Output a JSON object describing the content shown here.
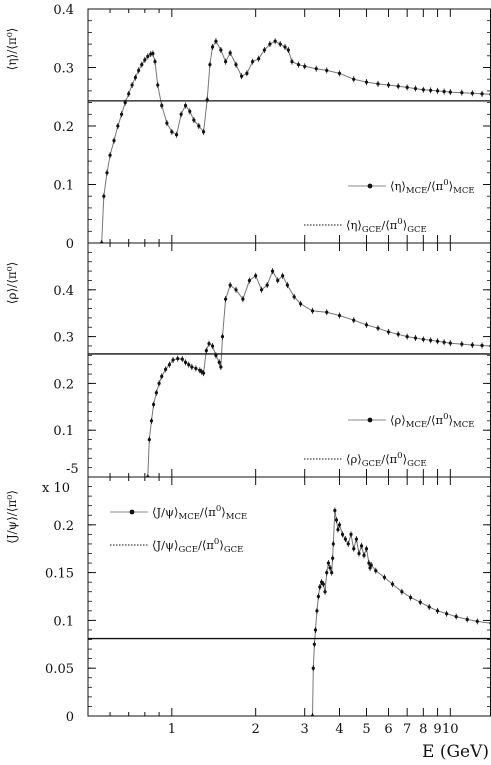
{
  "chart_data": [
    {
      "type": "line",
      "ylabel": "⟨η⟩/⟨π⁰⟩",
      "ylim": [
        0,
        0.4
      ],
      "yticks": [
        0,
        0.1,
        0.2,
        0.3,
        0.4
      ],
      "ytick_labels": [
        "0",
        "0.1",
        "0.2",
        "0.3",
        "0.4"
      ],
      "legend_position": "right",
      "series": [
        {
          "name": "⟨η⟩MCE/⟨π0⟩MCE",
          "legend": {
            "pre": "⟨η⟩",
            "sub1": "MCE",
            "mid": "/⟨π",
            "sup": "0",
            "post": "⟩",
            "sub2": "MCE"
          },
          "style": "points-line",
          "x": [
            0.56,
            0.57,
            0.585,
            0.6,
            0.62,
            0.64,
            0.66,
            0.68,
            0.7,
            0.72,
            0.74,
            0.76,
            0.78,
            0.8,
            0.82,
            0.84,
            0.855,
            0.87,
            0.89,
            0.92,
            0.96,
            1.0,
            1.04,
            1.08,
            1.12,
            1.16,
            1.2,
            1.25,
            1.3,
            1.34,
            1.37,
            1.4,
            1.44,
            1.5,
            1.56,
            1.62,
            1.7,
            1.78,
            1.86,
            1.95,
            2.05,
            2.15,
            2.25,
            2.35,
            2.45,
            2.55,
            2.62,
            2.7,
            2.85,
            3.0,
            3.3,
            3.6,
            4.0,
            4.5,
            5.0,
            5.5,
            6.0,
            6.5,
            7.0,
            7.5,
            8.0,
            8.5,
            9.0,
            9.5,
            10.0,
            11.0,
            12.0,
            13.0,
            14.0
          ],
          "y": [
            0.0,
            0.08,
            0.12,
            0.15,
            0.175,
            0.2,
            0.22,
            0.24,
            0.255,
            0.27,
            0.283,
            0.295,
            0.305,
            0.313,
            0.319,
            0.323,
            0.324,
            0.31,
            0.27,
            0.235,
            0.205,
            0.19,
            0.185,
            0.22,
            0.235,
            0.225,
            0.21,
            0.2,
            0.19,
            0.245,
            0.305,
            0.335,
            0.345,
            0.33,
            0.31,
            0.325,
            0.305,
            0.285,
            0.29,
            0.31,
            0.315,
            0.33,
            0.34,
            0.345,
            0.34,
            0.335,
            0.33,
            0.31,
            0.305,
            0.302,
            0.298,
            0.295,
            0.29,
            0.28,
            0.275,
            0.272,
            0.27,
            0.268,
            0.266,
            0.264,
            0.262,
            0.261,
            0.26,
            0.259,
            0.258,
            0.257,
            0.256,
            0.255,
            0.254
          ]
        },
        {
          "name": "⟨η⟩GCE/⟨π0⟩GCE",
          "legend": {
            "pre": "⟨η⟩",
            "sub1": "GCE",
            "mid": "/⟨π",
            "sup": "0",
            "post": "⟩",
            "sub2": "GCE"
          },
          "style": "constant-line",
          "x": [
            0.5,
            14.0
          ],
          "y": [
            0.243,
            0.243
          ]
        }
      ]
    },
    {
      "type": "line",
      "ylabel": "⟨ρ⟩/⟨π⁰⟩",
      "ylim": [
        0,
        0.5
      ],
      "yticks": [
        0.1,
        0.2,
        0.3,
        0.4
      ],
      "ytick_labels": [
        "0.1",
        "0.2",
        "0.3",
        "0.4"
      ],
      "corner_label": "-5",
      "legend_position": "right",
      "series": [
        {
          "name": "⟨ρ⟩MCE/⟨π0⟩MCE",
          "legend": {
            "pre": "⟨ρ⟩",
            "sub1": "MCE",
            "mid": "/⟨π",
            "sup": "0",
            "post": "⟩",
            "sub2": "MCE"
          },
          "style": "points-line",
          "x": [
            0.82,
            0.83,
            0.845,
            0.86,
            0.88,
            0.9,
            0.92,
            0.95,
            0.98,
            1.01,
            1.05,
            1.09,
            1.12,
            1.15,
            1.18,
            1.22,
            1.26,
            1.28,
            1.3,
            1.33,
            1.36,
            1.4,
            1.44,
            1.48,
            1.5,
            1.52,
            1.56,
            1.62,
            1.7,
            1.8,
            1.9,
            2.0,
            2.1,
            2.2,
            2.3,
            2.4,
            2.5,
            2.6,
            2.75,
            2.9,
            3.2,
            3.6,
            4.0,
            4.5,
            5.0,
            5.5,
            6.0,
            6.5,
            7.0,
            7.5,
            8.0,
            8.5,
            9.0,
            9.5,
            10.0,
            11.0,
            12.0,
            13.0,
            14.0
          ],
          "y": [
            0.0,
            0.08,
            0.12,
            0.155,
            0.18,
            0.2,
            0.215,
            0.23,
            0.24,
            0.25,
            0.253,
            0.252,
            0.245,
            0.24,
            0.235,
            0.232,
            0.228,
            0.225,
            0.222,
            0.27,
            0.285,
            0.28,
            0.26,
            0.245,
            0.235,
            0.3,
            0.38,
            0.41,
            0.4,
            0.38,
            0.42,
            0.43,
            0.4,
            0.41,
            0.44,
            0.42,
            0.43,
            0.41,
            0.385,
            0.37,
            0.355,
            0.352,
            0.345,
            0.335,
            0.325,
            0.318,
            0.31,
            0.305,
            0.3,
            0.297,
            0.294,
            0.292,
            0.29,
            0.288,
            0.286,
            0.284,
            0.282,
            0.281,
            0.28
          ]
        },
        {
          "name": "⟨ρ⟩GCE/⟨π0⟩GCE",
          "legend": {
            "pre": "⟨ρ⟩",
            "sub1": "GCE",
            "mid": "/⟨π",
            "sup": "0",
            "post": "⟩",
            "sub2": "GCE"
          },
          "style": "constant-line",
          "x": [
            0.5,
            14.0
          ],
          "y": [
            0.263,
            0.263
          ]
        }
      ]
    },
    {
      "type": "line",
      "ylabel": "⟨J/ψ⟩/⟨π⁰⟩",
      "ylabel_scale": "x 10",
      "ylim": [
        0,
        0.25
      ],
      "yticks": [
        0,
        0.05,
        0.1,
        0.15,
        0.2
      ],
      "ytick_labels": [
        "0",
        "0.05",
        "0.1",
        "0.15",
        "0.2"
      ],
      "legend_position": "top-left",
      "xlabel": "E (GeV)",
      "xticks": [
        1,
        2,
        3,
        4,
        5,
        6,
        7,
        8,
        9,
        10
      ],
      "xtick_labels": [
        "1",
        "2",
        "3",
        "4",
        "5",
        "6",
        "7",
        "8",
        "9",
        "10"
      ],
      "xlim": [
        0.5,
        14.0
      ],
      "xscale": "log",
      "series": [
        {
          "name": "⟨J/ψ⟩MCE/⟨π0⟩MCE",
          "legend": {
            "pre": "⟨J/ψ⟩",
            "sub1": "MCE",
            "mid": "/⟨π",
            "sup": "0",
            "post": "⟩",
            "sub2": "MCE"
          },
          "style": "points-line",
          "x": [
            3.2,
            3.22,
            3.25,
            3.28,
            3.32,
            3.36,
            3.4,
            3.45,
            3.5,
            3.55,
            3.6,
            3.65,
            3.7,
            3.75,
            3.78,
            3.8,
            3.85,
            3.9,
            3.95,
            4.0,
            4.1,
            4.2,
            4.3,
            4.4,
            4.5,
            4.6,
            4.7,
            4.8,
            4.9,
            5.0,
            5.1,
            5.15,
            5.2,
            5.4,
            5.8,
            6.2,
            6.7,
            7.2,
            7.8,
            8.4,
            9.0,
            9.7,
            10.5,
            11.5,
            12.5,
            14.0
          ],
          "y": [
            0.0,
            0.05,
            0.075,
            0.09,
            0.11,
            0.125,
            0.135,
            0.14,
            0.138,
            0.13,
            0.15,
            0.16,
            0.155,
            0.15,
            0.165,
            0.18,
            0.215,
            0.205,
            0.195,
            0.2,
            0.19,
            0.185,
            0.18,
            0.19,
            0.175,
            0.185,
            0.17,
            0.178,
            0.168,
            0.175,
            0.16,
            0.155,
            0.158,
            0.152,
            0.145,
            0.138,
            0.13,
            0.124,
            0.119,
            0.114,
            0.11,
            0.107,
            0.104,
            0.101,
            0.099,
            0.097
          ]
        },
        {
          "name": "⟨J/ψ⟩GCE/⟨π0⟩GCE",
          "legend": {
            "pre": "⟨J/ψ⟩",
            "sub1": "GCE",
            "mid": "/⟨π",
            "sup": "0",
            "post": "⟩",
            "sub2": "GCE"
          },
          "style": "constant-line",
          "x": [
            0.5,
            14.0
          ],
          "y": [
            0.081,
            0.081
          ]
        }
      ]
    }
  ]
}
